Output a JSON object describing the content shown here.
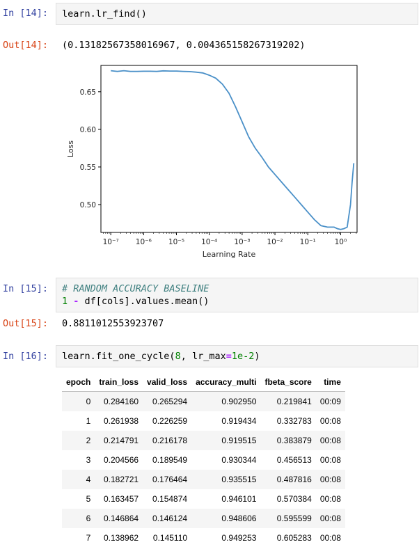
{
  "cells": {
    "c14": {
      "prompt_in": "In [14]:",
      "code": "learn.lr_find()",
      "prompt_out": "Out[14]:",
      "output": "(0.13182567358016967, 0.004365158267319202)"
    },
    "c15": {
      "prompt_in": "In [15]:",
      "comment": "# RANDOM ACCURACY BASELINE",
      "code_num": "1",
      "code_op": "-",
      "code_rest": " df[cols].values.mean()",
      "prompt_out": "Out[15]:",
      "output": "0.8811012553923707"
    },
    "c16": {
      "prompt_in": "In [16]:",
      "code_pre": "learn.fit_one_cycle(",
      "code_n": "8",
      "code_mid": ", lr_max",
      "code_eq": "=",
      "code_lr": "1e-2",
      "code_post": ")"
    }
  },
  "chart_data": {
    "type": "line",
    "xlabel": "Learning Rate",
    "ylabel": "Loss",
    "xscale": "log",
    "xlim": [
      -7.3,
      0.5
    ],
    "ylim": [
      0.463,
      0.685
    ],
    "x_tick_labels": [
      "10⁻⁷",
      "10⁻⁶",
      "10⁻⁵",
      "10⁻⁴",
      "10⁻³",
      "10⁻²",
      "10⁻¹",
      "10⁰"
    ],
    "x_tick_exponents": [
      -7,
      -6,
      -5,
      -4,
      -3,
      -2,
      -1,
      0
    ],
    "y_ticks": [
      0.5,
      0.55,
      0.6,
      0.65
    ],
    "y_tick_labels": [
      "0.50",
      "0.55",
      "0.60",
      "0.65"
    ],
    "series": [
      {
        "color": "#4a90c8",
        "log10_x": [
          -7.0,
          -6.8,
          -6.6,
          -6.4,
          -6.2,
          -6.0,
          -5.8,
          -5.6,
          -5.4,
          -5.2,
          -5.0,
          -4.8,
          -4.6,
          -4.4,
          -4.2,
          -4.0,
          -3.8,
          -3.6,
          -3.4,
          -3.2,
          -3.0,
          -2.8,
          -2.6,
          -2.4,
          -2.2,
          -2.0,
          -1.8,
          -1.6,
          -1.4,
          -1.2,
          -1.0,
          -0.8,
          -0.6,
          -0.4,
          -0.2,
          -0.1,
          0.0,
          0.1,
          0.2,
          0.3,
          0.35,
          0.4
        ],
        "y": [
          0.678,
          0.677,
          0.678,
          0.677,
          0.677,
          0.6772,
          0.6772,
          0.677,
          0.6778,
          0.6775,
          0.6775,
          0.677,
          0.6768,
          0.676,
          0.675,
          0.672,
          0.668,
          0.66,
          0.648,
          0.63,
          0.61,
          0.59,
          0.575,
          0.563,
          0.55,
          0.54,
          0.53,
          0.52,
          0.51,
          0.5,
          0.49,
          0.48,
          0.472,
          0.47,
          0.47,
          0.468,
          0.467,
          0.468,
          0.47,
          0.5,
          0.53,
          0.555
        ]
      }
    ]
  },
  "table": {
    "columns": [
      "epoch",
      "train_loss",
      "valid_loss",
      "accuracy_multi",
      "fbeta_score",
      "time"
    ],
    "rows": [
      [
        "0",
        "0.284160",
        "0.265294",
        "0.902950",
        "0.219841",
        "00:09"
      ],
      [
        "1",
        "0.261938",
        "0.226259",
        "0.919434",
        "0.332783",
        "00:08"
      ],
      [
        "2",
        "0.214791",
        "0.216178",
        "0.919515",
        "0.383879",
        "00:08"
      ],
      [
        "3",
        "0.204566",
        "0.189549",
        "0.930344",
        "0.456513",
        "00:08"
      ],
      [
        "4",
        "0.182721",
        "0.176464",
        "0.935515",
        "0.487816",
        "00:08"
      ],
      [
        "5",
        "0.163457",
        "0.154874",
        "0.946101",
        "0.570384",
        "00:08"
      ],
      [
        "6",
        "0.146864",
        "0.146124",
        "0.948606",
        "0.595599",
        "00:08"
      ],
      [
        "7",
        "0.138962",
        "0.145110",
        "0.949253",
        "0.605283",
        "00:08"
      ]
    ]
  }
}
